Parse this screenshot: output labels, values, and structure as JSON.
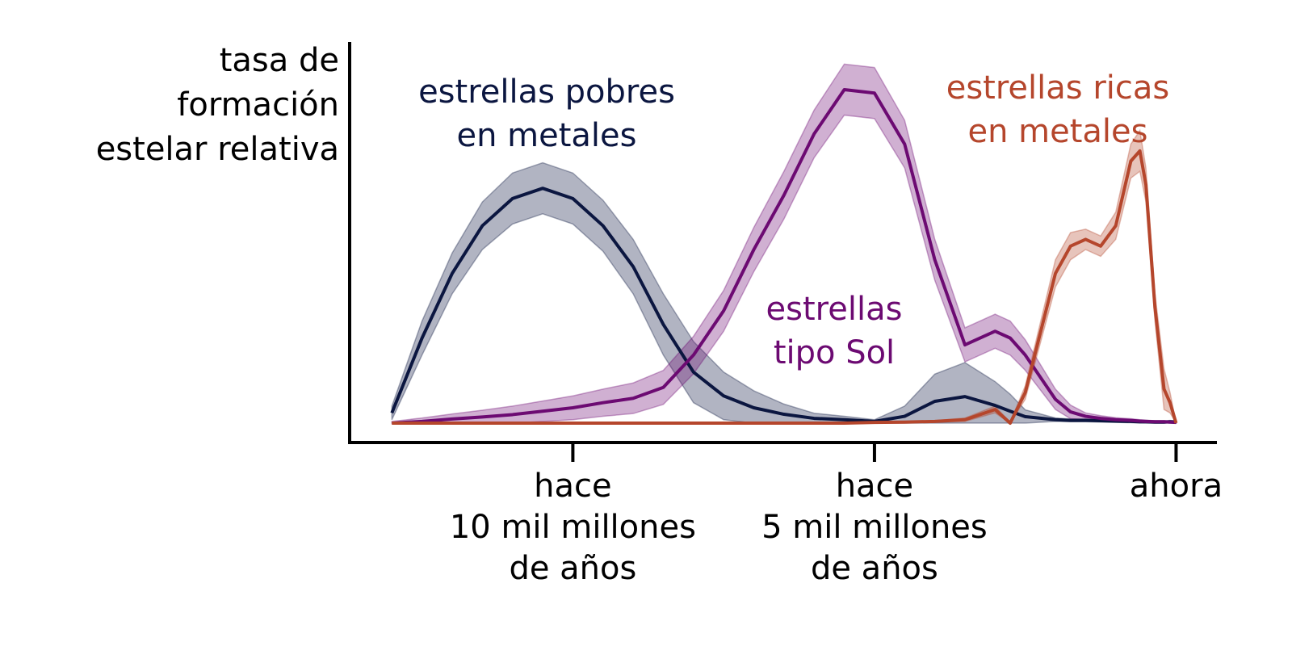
{
  "chart_data": {
    "type": "line",
    "ylabel": "tasa de\nformación\nestelar relativa",
    "x": [
      13,
      12.5,
      12,
      11.5,
      11,
      10.5,
      10,
      9.5,
      9,
      8.5,
      8,
      7.5,
      7,
      6.5,
      6,
      5.5,
      5,
      4.5,
      4,
      3.5,
      3,
      2.75,
      2.5,
      2,
      1.75,
      1.5,
      1.25,
      1,
      0.75,
      0.6,
      0.5,
      0.35,
      0.2,
      0.1,
      0
    ],
    "xlim": [
      13.7,
      -0.65
    ],
    "ylim": [
      -0.057,
      1.12
    ],
    "xticks": [
      {
        "value": 10,
        "label": "hace\n10 mil millones\nde años"
      },
      {
        "value": 5,
        "label": "hace\n5 mil millones\nde años"
      },
      {
        "value": 0,
        "label": "ahora"
      }
    ],
    "series": [
      {
        "name": "estrellas pobres\nen metales",
        "color": "#0b1640",
        "values": [
          0.03,
          0.25,
          0.44,
          0.58,
          0.66,
          0.69,
          0.66,
          0.58,
          0.46,
          0.29,
          0.15,
          0.08,
          0.045,
          0.026,
          0.014,
          0.01,
          0.005,
          0.02,
          0.064,
          0.078,
          0.052,
          0.035,
          0.019,
          0.01,
          0.008,
          0.008,
          0.007,
          0.006,
          0.005,
          0.004,
          0.004,
          0.003,
          0.003,
          0.004,
          0.003
        ],
        "upper": [
          0.05,
          0.3,
          0.5,
          0.65,
          0.735,
          0.765,
          0.735,
          0.655,
          0.54,
          0.38,
          0.24,
          0.15,
          0.095,
          0.056,
          0.029,
          0.02,
          0.01,
          0.05,
          0.144,
          0.178,
          0.122,
          0.085,
          0.039,
          0.015,
          0.012,
          0.012,
          0.011,
          0.01,
          0.009,
          0.008,
          0.008,
          0.007,
          0.007,
          0.008,
          0.007
        ],
        "lower": [
          0.01,
          0.2,
          0.38,
          0.51,
          0.585,
          0.615,
          0.585,
          0.505,
          0.38,
          0.2,
          0.06,
          0.01,
          0,
          0,
          0,
          0,
          0,
          0,
          0,
          0,
          0,
          0,
          0,
          0.005,
          0.004,
          0.004,
          0.003,
          0.002,
          0.001,
          0,
          0,
          0,
          0,
          0,
          0
        ]
      },
      {
        "name": "estrellas\ntipo Sol",
        "color": "#6c0a72",
        "values": [
          0,
          0.005,
          0.012,
          0.018,
          0.025,
          0.035,
          0.045,
          0.06,
          0.073,
          0.105,
          0.2,
          0.33,
          0.51,
          0.67,
          0.85,
          0.98,
          0.97,
          0.82,
          0.48,
          0.23,
          0.27,
          0.25,
          0.2,
          0.07,
          0.033,
          0.02,
          0.014,
          0.01,
          0.008,
          0.006,
          0.005,
          0.004,
          0.004,
          0.003,
          0.002
        ],
        "upper": [
          0.005,
          0.015,
          0.027,
          0.038,
          0.05,
          0.065,
          0.08,
          0.1,
          0.118,
          0.155,
          0.255,
          0.39,
          0.575,
          0.74,
          0.92,
          1.055,
          1.045,
          0.89,
          0.54,
          0.28,
          0.32,
          0.3,
          0.245,
          0.1,
          0.053,
          0.03,
          0.022,
          0.016,
          0.013,
          0.01,
          0.009,
          0.007,
          0.007,
          0.005,
          0.004
        ],
        "lower": [
          0,
          0,
          0,
          0,
          0,
          0.005,
          0.01,
          0.02,
          0.028,
          0.055,
          0.145,
          0.27,
          0.445,
          0.6,
          0.78,
          0.905,
          0.895,
          0.75,
          0.42,
          0.18,
          0.22,
          0.2,
          0.155,
          0.04,
          0.013,
          0.01,
          0.006,
          0.004,
          0.003,
          0.002,
          0.001,
          0.001,
          0.001,
          0.001,
          0
        ]
      },
      {
        "name": "estrellas ricas\nen metales",
        "color": "#b5462c",
        "values": [
          0,
          0,
          0,
          0,
          0,
          0,
          0,
          0,
          0,
          0,
          0,
          0,
          0,
          0,
          0,
          0,
          0.002,
          0.003,
          0.005,
          0.01,
          0.04,
          0,
          0.09,
          0.44,
          0.52,
          0.54,
          0.52,
          0.58,
          0.77,
          0.8,
          0.7,
          0.34,
          0.1,
          0.06,
          0
        ],
        "upper": [
          0,
          0,
          0,
          0,
          0,
          0,
          0,
          0,
          0,
          0,
          0,
          0,
          0,
          0,
          0,
          0,
          0.003,
          0.004,
          0.007,
          0.015,
          0.05,
          0.002,
          0.11,
          0.48,
          0.56,
          0.57,
          0.55,
          0.62,
          0.82,
          0.86,
          0.75,
          0.38,
          0.16,
          0.09,
          0
        ],
        "lower": [
          0,
          0,
          0,
          0,
          0,
          0,
          0,
          0,
          0,
          0,
          0,
          0,
          0,
          0,
          0,
          0,
          0.001,
          0.002,
          0.003,
          0.005,
          0.03,
          0,
          0.07,
          0.4,
          0.48,
          0.51,
          0.49,
          0.54,
          0.72,
          0.74,
          0.65,
          0.3,
          0.04,
          0.03,
          0
        ]
      }
    ]
  }
}
